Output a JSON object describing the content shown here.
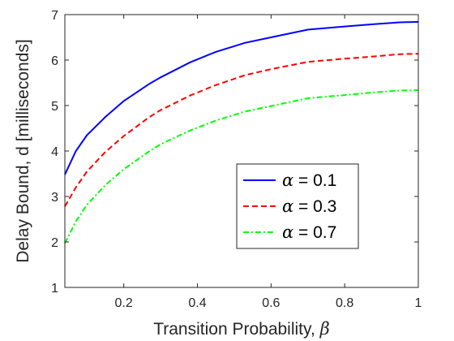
{
  "chart_data": {
    "type": "line",
    "xlabel": "Transition Probability,",
    "xlabel_symbol": "β",
    "ylabel": "Delay Bound, d [milliseconds]",
    "xlim": [
      0.04,
      1.0
    ],
    "ylim": [
      1,
      7
    ],
    "xticks": [
      0.2,
      0.4,
      0.6,
      0.8,
      1
    ],
    "xtick_labels": [
      "0.2",
      "0.4",
      "0.6",
      "0.8",
      "1"
    ],
    "yticks": [
      1,
      2,
      3,
      4,
      5,
      6,
      7
    ],
    "ytick_labels": [
      "1",
      "2",
      "3",
      "4",
      "5",
      "6",
      "7"
    ],
    "grid": false,
    "legend_position": "lower-right",
    "legend_symbol": "α",
    "series": [
      {
        "name": "= 0.1",
        "color": "#0000ff",
        "dash": "solid",
        "x": [
          0.04,
          0.07,
          0.1,
          0.15,
          0.2,
          0.27,
          0.3,
          0.38,
          0.45,
          0.53,
          0.6,
          0.7,
          0.8,
          0.88,
          0.95,
          1.0
        ],
        "y": [
          3.48,
          4.0,
          4.35,
          4.75,
          5.1,
          5.48,
          5.62,
          5.95,
          6.18,
          6.38,
          6.5,
          6.67,
          6.74,
          6.79,
          6.83,
          6.84
        ]
      },
      {
        "name": "= 0.3",
        "color": "#ff0000",
        "dash": "dashed",
        "x": [
          0.04,
          0.07,
          0.1,
          0.15,
          0.2,
          0.27,
          0.3,
          0.38,
          0.45,
          0.53,
          0.6,
          0.7,
          0.8,
          0.88,
          0.95,
          1.0
        ],
        "y": [
          2.78,
          3.2,
          3.55,
          3.98,
          4.33,
          4.75,
          4.9,
          5.22,
          5.45,
          5.67,
          5.8,
          5.96,
          6.03,
          6.08,
          6.13,
          6.14
        ]
      },
      {
        "name": "= 0.7",
        "color": "#00ff00",
        "dash": "dashdot",
        "x": [
          0.04,
          0.07,
          0.1,
          0.15,
          0.2,
          0.27,
          0.3,
          0.38,
          0.45,
          0.53,
          0.6,
          0.7,
          0.8,
          0.88,
          0.95,
          1.0
        ],
        "y": [
          1.97,
          2.45,
          2.82,
          3.25,
          3.6,
          4.0,
          4.15,
          4.45,
          4.67,
          4.87,
          4.99,
          5.16,
          5.23,
          5.29,
          5.33,
          5.34
        ]
      }
    ]
  }
}
